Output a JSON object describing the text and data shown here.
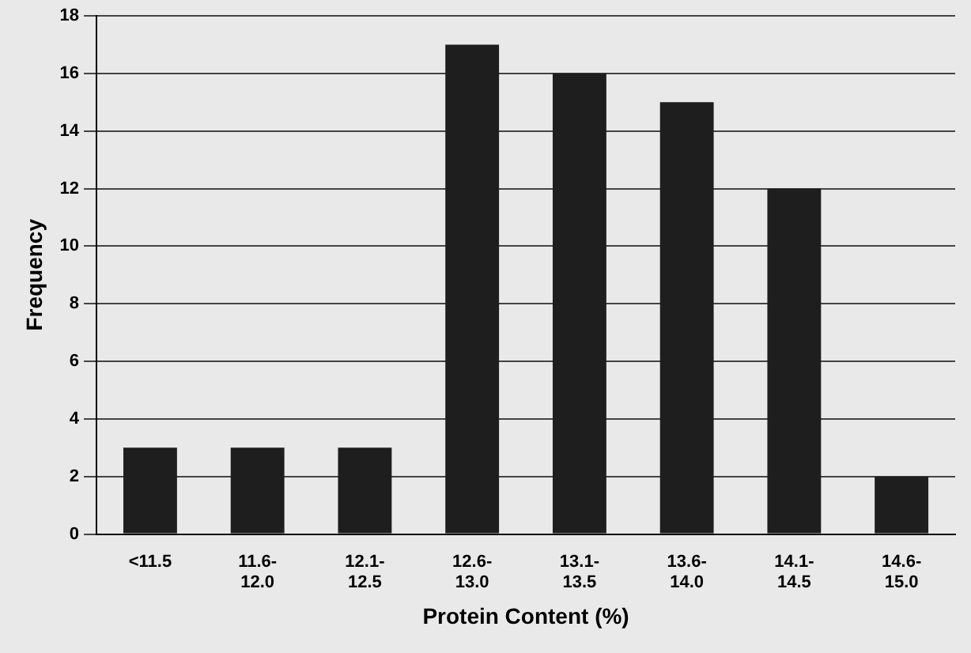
{
  "chart_data": {
    "type": "bar",
    "xlabel": "Protein Content (%)",
    "ylabel": "Frequency",
    "categories": [
      "<11.5",
      "11.6-12.0",
      "12.1-12.5",
      "12.6-13.0",
      "13.1-13.5",
      "13.6-14.0",
      "14.1-14.5",
      "14.6-15.0"
    ],
    "values": [
      3,
      3,
      3,
      17,
      16,
      15,
      12,
      2
    ],
    "color": "#1e1e1e",
    "ylim": [
      0,
      18
    ],
    "yticks": [
      0,
      2,
      4,
      6,
      8,
      10,
      12,
      14,
      16,
      18
    ],
    "grid": "y"
  }
}
